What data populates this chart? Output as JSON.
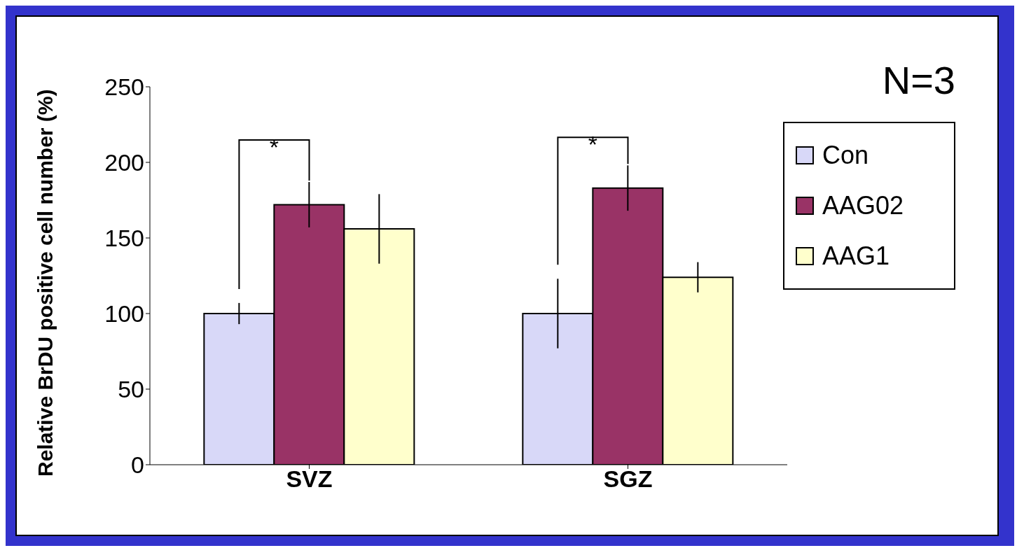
{
  "chart_data": {
    "type": "bar",
    "ylabel": "Relative BrDU positive cell number (%)",
    "categories": [
      "SVZ",
      "SGZ"
    ],
    "series": [
      {
        "name": "Con",
        "color": "#d8d8f8",
        "values": [
          100,
          100
        ],
        "errors": [
          7,
          23
        ]
      },
      {
        "name": "AAG02",
        "color": "#993366",
        "values": [
          172,
          183
        ],
        "errors": [
          15,
          15
        ]
      },
      {
        "name": "AAG1",
        "color": "#ffffcc",
        "values": [
          156,
          124
        ],
        "errors": [
          23,
          10
        ]
      }
    ],
    "ylim": [
      0,
      250
    ],
    "yticks": [
      0,
      50,
      100,
      150,
      200,
      250
    ],
    "grid": false,
    "legend": "right",
    "annotations": [
      "*",
      "*",
      "N=3"
    ]
  }
}
